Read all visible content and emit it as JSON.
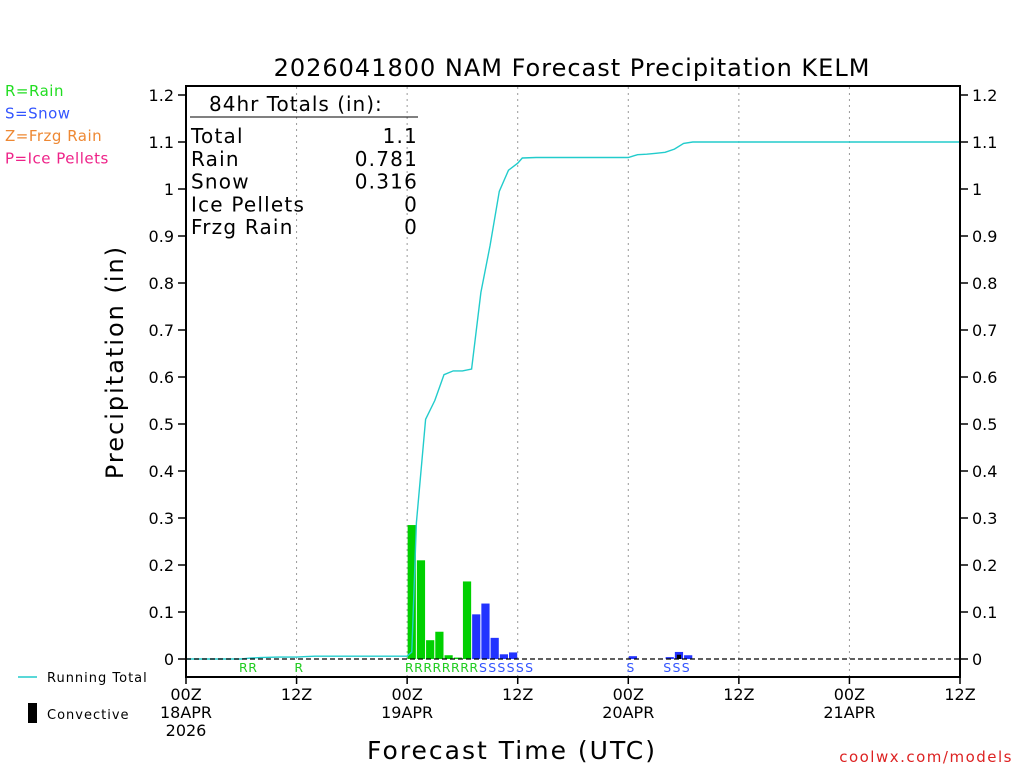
{
  "chart_data": {
    "type": "bar",
    "title": "2026041800 NAM Forecast Precipitation KELM",
    "xlabel": "Forecast Time (UTC)",
    "ylabel": "Precipitation (in)",
    "ylim": [
      0,
      1.2
    ],
    "xlim_hours": [
      0,
      84
    ],
    "y_ticks": [
      "0",
      "0.1",
      "0.2",
      "0.3",
      "0.4",
      "0.5",
      "0.6",
      "0.7",
      "0.8",
      "0.9",
      "1",
      "1.1",
      "1.2"
    ],
    "x_ticks": [
      {
        "hour": 0,
        "line1": "00Z",
        "line2": "18APR",
        "line3": "2026"
      },
      {
        "hour": 12,
        "line1": "12Z",
        "line2": "",
        "line3": ""
      },
      {
        "hour": 24,
        "line1": "00Z",
        "line2": "19APR",
        "line3": ""
      },
      {
        "hour": 36,
        "line1": "12Z",
        "line2": "",
        "line3": ""
      },
      {
        "hour": 48,
        "line1": "00Z",
        "line2": "20APR",
        "line3": ""
      },
      {
        "hour": 60,
        "line1": "12Z",
        "line2": "",
        "line3": ""
      },
      {
        "hour": 72,
        "line1": "00Z",
        "line2": "21APR",
        "line3": ""
      },
      {
        "hour": 84,
        "line1": "12Z",
        "line2": "",
        "line3": ""
      }
    ],
    "totals": {
      "header": "84hr Totals (in):",
      "rows": [
        {
          "label": "Total",
          "value": "1.1"
        },
        {
          "label": "Rain",
          "value": "0.781"
        },
        {
          "label": "Snow",
          "value": "0.316"
        },
        {
          "label": "Ice Pellets",
          "value": "0"
        },
        {
          "label": "Frzg Rain",
          "value": "0"
        }
      ]
    },
    "ptype_legend": [
      {
        "text": "R=Rain",
        "color": "#22dd22"
      },
      {
        "text": "S=Snow",
        "color": "#3355ff"
      },
      {
        "text": "Z=Frzg Rain",
        "color": "#ee8833"
      },
      {
        "text": "P=Ice Pellets",
        "color": "#ee2288"
      }
    ],
    "series_legend": {
      "running_total": "Running Total",
      "convective": "Convective"
    },
    "colors": {
      "rain": "#00d000",
      "snow": "#2233ff",
      "running_total": "#22cccc",
      "convective": "#000000",
      "rain_label": "#22cc22",
      "snow_label": "#3355ff"
    },
    "bars": [
      {
        "hour": 25,
        "value": 0.285,
        "ptype": "rain"
      },
      {
        "hour": 26,
        "value": 0.21,
        "ptype": "rain"
      },
      {
        "hour": 27,
        "value": 0.04,
        "ptype": "rain"
      },
      {
        "hour": 28,
        "value": 0.058,
        "ptype": "rain"
      },
      {
        "hour": 29,
        "value": 0.008,
        "ptype": "rain"
      },
      {
        "hour": 30,
        "value": 0.003,
        "ptype": "rain"
      },
      {
        "hour": 31,
        "value": 0.165,
        "ptype": "rain"
      },
      {
        "hour": 32,
        "value": 0.095,
        "ptype": "snow"
      },
      {
        "hour": 33,
        "value": 0.118,
        "ptype": "snow"
      },
      {
        "hour": 34,
        "value": 0.045,
        "ptype": "snow"
      },
      {
        "hour": 35,
        "value": 0.01,
        "ptype": "snow"
      },
      {
        "hour": 36,
        "value": 0.014,
        "ptype": "snow"
      },
      {
        "hour": 49,
        "value": 0.006,
        "ptype": "snow"
      },
      {
        "hour": 53,
        "value": 0.004,
        "ptype": "snow"
      },
      {
        "hour": 54,
        "value": 0.015,
        "ptype": "snow"
      },
      {
        "hour": 55,
        "value": 0.008,
        "ptype": "snow"
      }
    ],
    "convective_bars": [
      {
        "hour": 54,
        "value": 0.009
      }
    ],
    "ptype_markers": [
      {
        "hour": 7,
        "letter": "R",
        "ptype": "rain"
      },
      {
        "hour": 8,
        "letter": "R",
        "ptype": "rain"
      },
      {
        "hour": 13,
        "letter": "R",
        "ptype": "rain"
      },
      {
        "hour": 25,
        "letter": "R",
        "ptype": "rain"
      },
      {
        "hour": 26,
        "letter": "R",
        "ptype": "rain"
      },
      {
        "hour": 27,
        "letter": "R",
        "ptype": "rain"
      },
      {
        "hour": 28,
        "letter": "R",
        "ptype": "rain"
      },
      {
        "hour": 29,
        "letter": "R",
        "ptype": "rain"
      },
      {
        "hour": 30,
        "letter": "R",
        "ptype": "rain"
      },
      {
        "hour": 31,
        "letter": "R",
        "ptype": "rain"
      },
      {
        "hour": 32,
        "letter": "R",
        "ptype": "rain"
      },
      {
        "hour": 33,
        "letter": "S",
        "ptype": "snow"
      },
      {
        "hour": 34,
        "letter": "S",
        "ptype": "snow"
      },
      {
        "hour": 35,
        "letter": "S",
        "ptype": "snow"
      },
      {
        "hour": 36,
        "letter": "S",
        "ptype": "snow"
      },
      {
        "hour": 37,
        "letter": "S",
        "ptype": "snow"
      },
      {
        "hour": 38,
        "letter": "S",
        "ptype": "snow"
      },
      {
        "hour": 49,
        "letter": "S",
        "ptype": "snow"
      },
      {
        "hour": 53,
        "letter": "S",
        "ptype": "snow"
      },
      {
        "hour": 54,
        "letter": "S",
        "ptype": "snow"
      },
      {
        "hour": 55,
        "letter": "S",
        "ptype": "snow"
      }
    ],
    "running_total": [
      [
        0,
        0
      ],
      [
        6,
        0.0
      ],
      [
        7,
        0.002
      ],
      [
        8,
        0.003
      ],
      [
        10,
        0.004
      ],
      [
        12,
        0.004
      ],
      [
        13,
        0.005
      ],
      [
        14,
        0.006
      ],
      [
        20,
        0.006
      ],
      [
        24,
        0.006
      ],
      [
        24.5,
        0.015
      ],
      [
        25,
        0.29
      ],
      [
        26,
        0.51
      ],
      [
        27,
        0.55
      ],
      [
        28,
        0.605
      ],
      [
        29,
        0.613
      ],
      [
        30,
        0.613
      ],
      [
        31,
        0.617
      ],
      [
        32,
        0.78
      ],
      [
        33,
        0.88
      ],
      [
        34,
        0.995
      ],
      [
        35,
        1.04
      ],
      [
        36,
        1.055
      ],
      [
        36.5,
        1.066
      ],
      [
        38,
        1.067
      ],
      [
        48,
        1.067
      ],
      [
        49,
        1.073
      ],
      [
        50,
        1.074
      ],
      [
        51,
        1.076
      ],
      [
        52,
        1.078
      ],
      [
        53,
        1.085
      ],
      [
        54,
        1.097
      ],
      [
        55,
        1.1
      ],
      [
        70,
        1.1
      ],
      [
        84,
        1.1
      ]
    ],
    "credit": "coolwx.com/models"
  }
}
